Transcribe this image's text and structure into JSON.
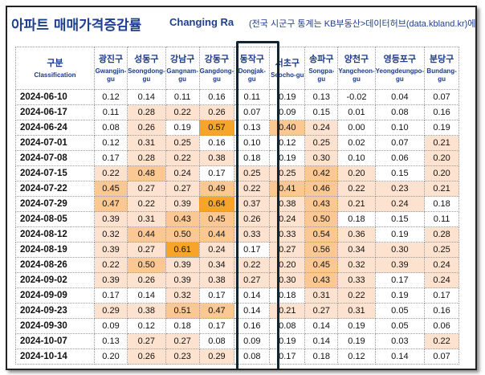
{
  "title": {
    "korean": "아파트 매매가격증감률",
    "english": "Changing Ra",
    "subtitle": "(전국 시군구 통계는 KB부동산>데이터허브(data.kbland.kr)에서"
  },
  "header": {
    "first": {
      "ko": "구분",
      "en": "Classification"
    },
    "districts": [
      {
        "ko": "광진구",
        "en": "Gwangjin-gu"
      },
      {
        "ko": "성동구",
        "en": "Seongdong-gu"
      },
      {
        "ko": "강남구",
        "en": "Gangnam-gu"
      },
      {
        "ko": "강동구",
        "en": "Gangdong-gu"
      },
      {
        "ko": "동작구",
        "en": "Dongjak-gu"
      },
      {
        "ko": "서초구",
        "en": "Seocho-gu"
      },
      {
        "ko": "송파구",
        "en": "Songpa-gu"
      },
      {
        "ko": "양천구",
        "en": "Yangcheon-gu"
      },
      {
        "ko": "영등포구",
        "en": "Yeongdeungpo-gu"
      },
      {
        "ko": "분당구",
        "en": "Bundang-gu"
      }
    ]
  },
  "colors": {
    "level0": "#ffffff",
    "level1": "#fde3cf",
    "level2": "#fbc792",
    "level3": "#f6a42a",
    "highlight_border": "#102530"
  },
  "rows": [
    {
      "date": "2024-06-10",
      "values": [
        "0.12",
        "0.14",
        "0.11",
        "0.16",
        "0.11",
        "0.19",
        "0.13",
        "-0.02",
        "0.04",
        "0.07"
      ],
      "levels": [
        0,
        0,
        0,
        0,
        0,
        0,
        0,
        0,
        0,
        0
      ]
    },
    {
      "date": "2024-06-17",
      "values": [
        "0.11",
        "0.28",
        "0.22",
        "0.26",
        "0.07",
        "0.09",
        "0.15",
        "0.01",
        "0.08",
        "0.16"
      ],
      "levels": [
        0,
        1,
        1,
        1,
        0,
        0,
        0,
        0,
        0,
        0
      ]
    },
    {
      "date": "2024-06-24",
      "values": [
        "0.08",
        "0.26",
        "0.19",
        "0.57",
        "0.13",
        "0.40",
        "0.24",
        "0.00",
        "0.10",
        "0.19"
      ],
      "levels": [
        0,
        1,
        0,
        3,
        0,
        2,
        1,
        0,
        0,
        0
      ]
    },
    {
      "date": "2024-07-01",
      "values": [
        "0.12",
        "0.31",
        "0.25",
        "0.16",
        "0.10",
        "0.12",
        "0.25",
        "0.02",
        "0.07",
        "0.21"
      ],
      "levels": [
        0,
        1,
        1,
        0,
        0,
        0,
        1,
        0,
        0,
        1
      ]
    },
    {
      "date": "2024-07-08",
      "values": [
        "0.17",
        "0.28",
        "0.22",
        "0.38",
        "0.18",
        "0.19",
        "0.30",
        "0.10",
        "0.06",
        "0.20"
      ],
      "levels": [
        0,
        1,
        1,
        1,
        0,
        0,
        1,
        0,
        0,
        1
      ]
    },
    {
      "date": "2024-07-15",
      "values": [
        "0.22",
        "0.48",
        "0.24",
        "0.17",
        "0.25",
        "0.25",
        "0.42",
        "0.20",
        "0.15",
        "0.20"
      ],
      "levels": [
        1,
        2,
        1,
        0,
        1,
        1,
        2,
        1,
        0,
        1
      ]
    },
    {
      "date": "2024-07-22",
      "values": [
        "0.45",
        "0.27",
        "0.27",
        "0.49",
        "0.22",
        "0.41",
        "0.46",
        "0.22",
        "0.23",
        "0.21"
      ],
      "levels": [
        2,
        1,
        1,
        2,
        1,
        2,
        2,
        1,
        1,
        1
      ]
    },
    {
      "date": "2024-07-29",
      "values": [
        "0.47",
        "0.22",
        "0.39",
        "0.64",
        "0.37",
        "0.38",
        "0.43",
        "0.21",
        "0.24",
        "0.18"
      ],
      "levels": [
        2,
        1,
        1,
        3,
        1,
        1,
        2,
        1,
        1,
        0
      ]
    },
    {
      "date": "2024-08-05",
      "values": [
        "0.39",
        "0.31",
        "0.43",
        "0.45",
        "0.26",
        "0.24",
        "0.50",
        "0.18",
        "0.15",
        "0.11"
      ],
      "levels": [
        1,
        1,
        2,
        2,
        1,
        1,
        2,
        0,
        0,
        0
      ]
    },
    {
      "date": "2024-08-12",
      "values": [
        "0.32",
        "0.44",
        "0.50",
        "0.44",
        "0.33",
        "0.33",
        "0.54",
        "0.36",
        "0.19",
        "0.28"
      ],
      "levels": [
        1,
        2,
        2,
        2,
        1,
        1,
        2,
        1,
        0,
        1
      ]
    },
    {
      "date": "2024-08-19",
      "values": [
        "0.39",
        "0.27",
        "0.61",
        "0.24",
        "0.17",
        "0.27",
        "0.56",
        "0.34",
        "0.30",
        "0.25"
      ],
      "levels": [
        1,
        1,
        3,
        1,
        0,
        1,
        2,
        1,
        1,
        1
      ]
    },
    {
      "date": "2024-08-26",
      "values": [
        "0.22",
        "0.50",
        "0.39",
        "0.34",
        "0.22",
        "0.20",
        "0.45",
        "0.32",
        "0.39",
        "0.24"
      ],
      "levels": [
        1,
        2,
        1,
        1,
        1,
        1,
        2,
        1,
        1,
        1
      ]
    },
    {
      "date": "2024-09-02",
      "values": [
        "0.39",
        "0.26",
        "0.39",
        "0.38",
        "0.27",
        "0.30",
        "0.43",
        "0.33",
        "0.17",
        "0.24"
      ],
      "levels": [
        1,
        1,
        1,
        1,
        1,
        1,
        2,
        1,
        0,
        1
      ]
    },
    {
      "date": "2024-09-09",
      "values": [
        "0.17",
        "0.14",
        "0.32",
        "0.17",
        "0.14",
        "0.18",
        "0.31",
        "0.22",
        "0.19",
        "0.17"
      ],
      "levels": [
        0,
        0,
        1,
        0,
        0,
        0,
        1,
        1,
        0,
        0
      ]
    },
    {
      "date": "2024-09-23",
      "values": [
        "0.29",
        "0.38",
        "0.51",
        "0.47",
        "0.14",
        "0.21",
        "0.27",
        "0.31",
        "0.05",
        "0.16"
      ],
      "levels": [
        1,
        1,
        2,
        2,
        0,
        1,
        1,
        1,
        0,
        0
      ]
    },
    {
      "date": "2024-09-30",
      "values": [
        "0.09",
        "0.12",
        "0.18",
        "0.17",
        "0.16",
        "0.08",
        "0.14",
        "0.19",
        "0.05",
        "0.06"
      ],
      "levels": [
        0,
        0,
        0,
        0,
        0,
        0,
        0,
        0,
        0,
        0
      ]
    },
    {
      "date": "2024-10-07",
      "values": [
        "0.13",
        "0.27",
        "0.27",
        "0.08",
        "0.09",
        "0.19",
        "0.14",
        "0.19",
        "0.03",
        "0.22"
      ],
      "levels": [
        0,
        1,
        1,
        0,
        0,
        0,
        0,
        0,
        0,
        1
      ]
    },
    {
      "date": "2024-10-14",
      "values": [
        "0.20",
        "0.26",
        "0.23",
        "0.29",
        "0.08",
        "0.17",
        "0.18",
        "0.12",
        "0.14",
        "0.07"
      ],
      "levels": [
        0,
        1,
        1,
        1,
        0,
        0,
        0,
        0,
        0,
        0
      ]
    }
  ]
}
